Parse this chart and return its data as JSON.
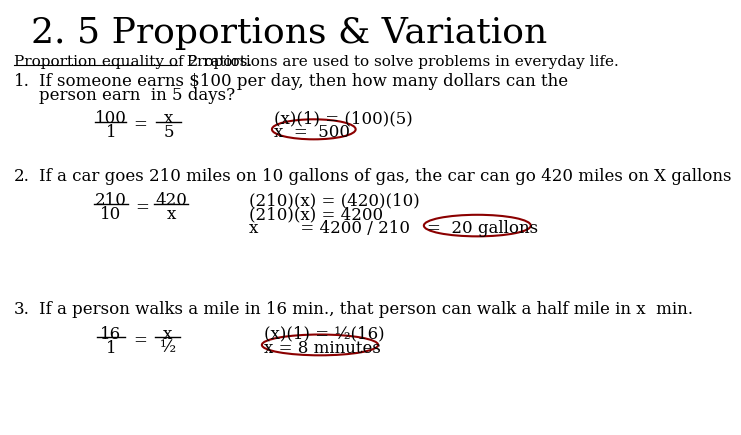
{
  "title": "2. 5 Proportions & Variation",
  "background_color": "#ffffff",
  "text_color": "#000000",
  "circle_color": "#8b0000",
  "subtitle_underline": "Proportion equality of 2 ratios.",
  "subtitle_rest": "  Proportions are used to solve problems in everyday life.",
  "problem1_line1": "If someone earns $100 per day, then how many dollars can the",
  "problem1_line2": "person earn  in 5 days?",
  "problem2_line1": "If a car goes 210 miles on 10 gallons of gas, the car can go 420 miles on X gallons",
  "problem3_line1": "If a person walks a mile in 16 min., that person can walk a half mile in x  min."
}
